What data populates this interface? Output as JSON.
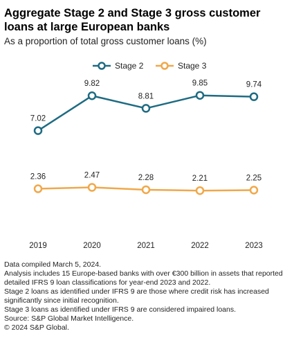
{
  "header": {
    "title": "Aggregate Stage 2 and Stage 3 gross customer loans at large European banks",
    "subtitle": "As a proportion of total gross customer loans (%)"
  },
  "colors": {
    "stage2": "#1e6b82",
    "stage3": "#f0a84a",
    "marker_fill": "#ffffff"
  },
  "chart_data": {
    "type": "line",
    "title": "Aggregate Stage 2 and Stage 3 gross customer loans at large European banks",
    "subtitle": "As a proportion of total gross customer loans (%)",
    "categories": [
      "2019",
      "2020",
      "2021",
      "2022",
      "2023"
    ],
    "series": [
      {
        "name": "Stage 2",
        "values": [
          7.02,
          9.82,
          8.81,
          9.85,
          9.74
        ],
        "labels": [
          "7.02",
          "9.82",
          "8.81",
          "9.85",
          "9.74"
        ]
      },
      {
        "name": "Stage 3",
        "values": [
          2.36,
          2.47,
          2.28,
          2.21,
          2.25
        ],
        "labels": [
          "2.36",
          "2.47",
          "2.28",
          "2.21",
          "2.25"
        ]
      }
    ],
    "grid": false,
    "legend": "top-center",
    "ylim": [
      0,
      12
    ]
  },
  "notes": [
    "Data compiled March 5, 2024.",
    "Analysis includes 15 Europe-based banks with over €300 billion in assets that reported detailed IFRS 9 loan classifications for year-end 2023 and 2022.",
    "Stage 2 loans as identified under IFRS 9 are those where credit risk has increased significantly since initial recognition.",
    "Stage 3 loans as identified under IFRS 9 are considered impaired loans.",
    "Source: S&P Global Market Intelligence.",
    "© 2024 S&P Global."
  ]
}
